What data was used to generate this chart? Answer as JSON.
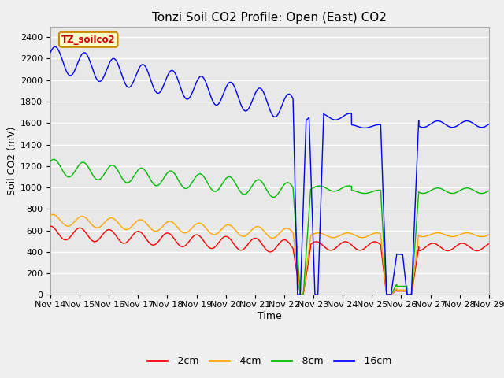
{
  "title": "Tonzi Soil CO2 Profile: Open (East) CO2",
  "xlabel": "Time",
  "ylabel": "Soil CO2 (mV)",
  "watermark": "TZ_soilco2",
  "ylim": [
    0,
    2500
  ],
  "xlim": [
    0,
    15
  ],
  "xtick_labels": [
    "Nov 14",
    "Nov 15",
    "Nov 16",
    "Nov 17",
    "Nov 18",
    "Nov 19",
    "Nov 20",
    "Nov 21",
    "Nov 22",
    "Nov 23",
    "Nov 24",
    "Nov 25",
    "Nov 26",
    "Nov 27",
    "Nov 28",
    "Nov 29"
  ],
  "colors": {
    "2cm": "#ff0000",
    "4cm": "#ffa500",
    "8cm": "#00bb00",
    "16cm": "#0000ff"
  },
  "legend_labels": [
    "-2cm",
    "-4cm",
    "-8cm",
    "-16cm"
  ],
  "plot_bg_color": "#e8e8e8",
  "fig_bg_color": "#f0f0f0",
  "grid_color": "#ffffff",
  "title_fontsize": 11,
  "axis_fontsize": 9,
  "tick_fontsize": 8
}
